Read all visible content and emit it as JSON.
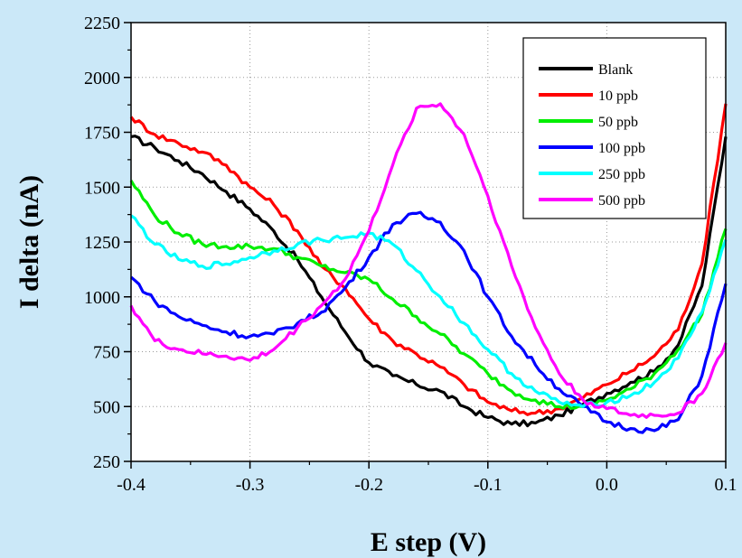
{
  "chart_data": {
    "type": "line",
    "xlabel": "E step (V)",
    "ylabel": "I delta (nA)",
    "xlim": [
      -0.4,
      0.1
    ],
    "ylim": [
      250,
      2250
    ],
    "xticks": [
      "-0.4",
      "-0.3",
      "-0.2",
      "-0.1",
      "0.0",
      "0.1"
    ],
    "yticks": [
      "250",
      "500",
      "750",
      "1000",
      "1250",
      "1500",
      "1750",
      "2000",
      "2250"
    ],
    "grid": true,
    "legend_position": "top-right",
    "colors": {
      "background": "#cbe8f8",
      "plot_area": "#ffffff"
    },
    "series": [
      {
        "name": "Blank",
        "color": "#000000",
        "x": [
          -0.4,
          -0.38,
          -0.36,
          -0.34,
          -0.32,
          -0.3,
          -0.28,
          -0.26,
          -0.24,
          -0.22,
          -0.2,
          -0.18,
          -0.16,
          -0.14,
          -0.12,
          -0.1,
          -0.08,
          -0.06,
          -0.04,
          -0.02,
          0.0,
          0.02,
          0.04,
          0.06,
          0.08,
          0.1
        ],
        "y": [
          1730,
          1680,
          1620,
          1560,
          1480,
          1400,
          1300,
          1170,
          1000,
          840,
          700,
          640,
          600,
          570,
          500,
          450,
          420,
          425,
          460,
          510,
          560,
          610,
          660,
          780,
          1050,
          1730
        ]
      },
      {
        "name": "10 ppb",
        "color": "#ff0000",
        "x": [
          -0.4,
          -0.38,
          -0.36,
          -0.34,
          -0.32,
          -0.3,
          -0.28,
          -0.26,
          -0.24,
          -0.22,
          -0.2,
          -0.18,
          -0.16,
          -0.14,
          -0.12,
          -0.1,
          -0.08,
          -0.06,
          -0.04,
          -0.02,
          0.0,
          0.02,
          0.04,
          0.06,
          0.08,
          0.1
        ],
        "y": [
          1820,
          1740,
          1700,
          1660,
          1600,
          1500,
          1420,
          1300,
          1140,
          1040,
          900,
          800,
          740,
          680,
          600,
          520,
          480,
          470,
          490,
          540,
          600,
          660,
          730,
          850,
          1150,
          1880
        ]
      },
      {
        "name": "50 ppb",
        "color": "#00ee00",
        "x": [
          -0.4,
          -0.38,
          -0.36,
          -0.34,
          -0.32,
          -0.3,
          -0.28,
          -0.26,
          -0.24,
          -0.22,
          -0.2,
          -0.18,
          -0.16,
          -0.14,
          -0.12,
          -0.1,
          -0.08,
          -0.06,
          -0.04,
          -0.02,
          0.0,
          0.02,
          0.04,
          0.06,
          0.08,
          0.1
        ],
        "y": [
          1530,
          1370,
          1290,
          1240,
          1230,
          1230,
          1220,
          1180,
          1140,
          1110,
          1080,
          990,
          910,
          830,
          740,
          650,
          570,
          530,
          500,
          500,
          530,
          580,
          650,
          760,
          920,
          1310
        ]
      },
      {
        "name": "100 ppb",
        "color": "#0000ff",
        "x": [
          -0.4,
          -0.38,
          -0.36,
          -0.34,
          -0.32,
          -0.3,
          -0.28,
          -0.26,
          -0.24,
          -0.22,
          -0.2,
          -0.18,
          -0.16,
          -0.14,
          -0.12,
          -0.1,
          -0.08,
          -0.06,
          -0.04,
          -0.02,
          0.0,
          0.02,
          0.04,
          0.06,
          0.08,
          0.1
        ],
        "y": [
          1090,
          980,
          910,
          870,
          840,
          820,
          830,
          880,
          930,
          1040,
          1180,
          1330,
          1380,
          1340,
          1210,
          1000,
          820,
          690,
          580,
          500,
          430,
          400,
          390,
          440,
          640,
          1060
        ]
      },
      {
        "name": "250 ppb",
        "color": "#00ffff",
        "x": [
          -0.4,
          -0.38,
          -0.36,
          -0.34,
          -0.32,
          -0.3,
          -0.28,
          -0.26,
          -0.24,
          -0.22,
          -0.2,
          -0.18,
          -0.16,
          -0.14,
          -0.12,
          -0.1,
          -0.08,
          -0.06,
          -0.04,
          -0.02,
          0.0,
          0.02,
          0.04,
          0.06,
          0.08,
          0.1
        ],
        "y": [
          1370,
          1240,
          1170,
          1140,
          1150,
          1180,
          1210,
          1240,
          1260,
          1270,
          1290,
          1240,
          1120,
          1000,
          880,
          760,
          650,
          570,
          520,
          500,
          520,
          550,
          610,
          720,
          930,
          1260
        ]
      },
      {
        "name": "500 ppb",
        "color": "#ff00ff",
        "x": [
          -0.4,
          -0.38,
          -0.36,
          -0.34,
          -0.32,
          -0.3,
          -0.28,
          -0.26,
          -0.24,
          -0.22,
          -0.2,
          -0.18,
          -0.16,
          -0.14,
          -0.12,
          -0.1,
          -0.08,
          -0.06,
          -0.04,
          -0.02,
          0.0,
          0.02,
          0.04,
          0.06,
          0.08,
          0.1
        ],
        "y": [
          960,
          800,
          760,
          740,
          730,
          710,
          760,
          860,
          960,
          1080,
          1300,
          1600,
          1860,
          1880,
          1740,
          1460,
          1140,
          860,
          650,
          530,
          490,
          460,
          460,
          470,
          560,
          790
        ]
      }
    ]
  }
}
